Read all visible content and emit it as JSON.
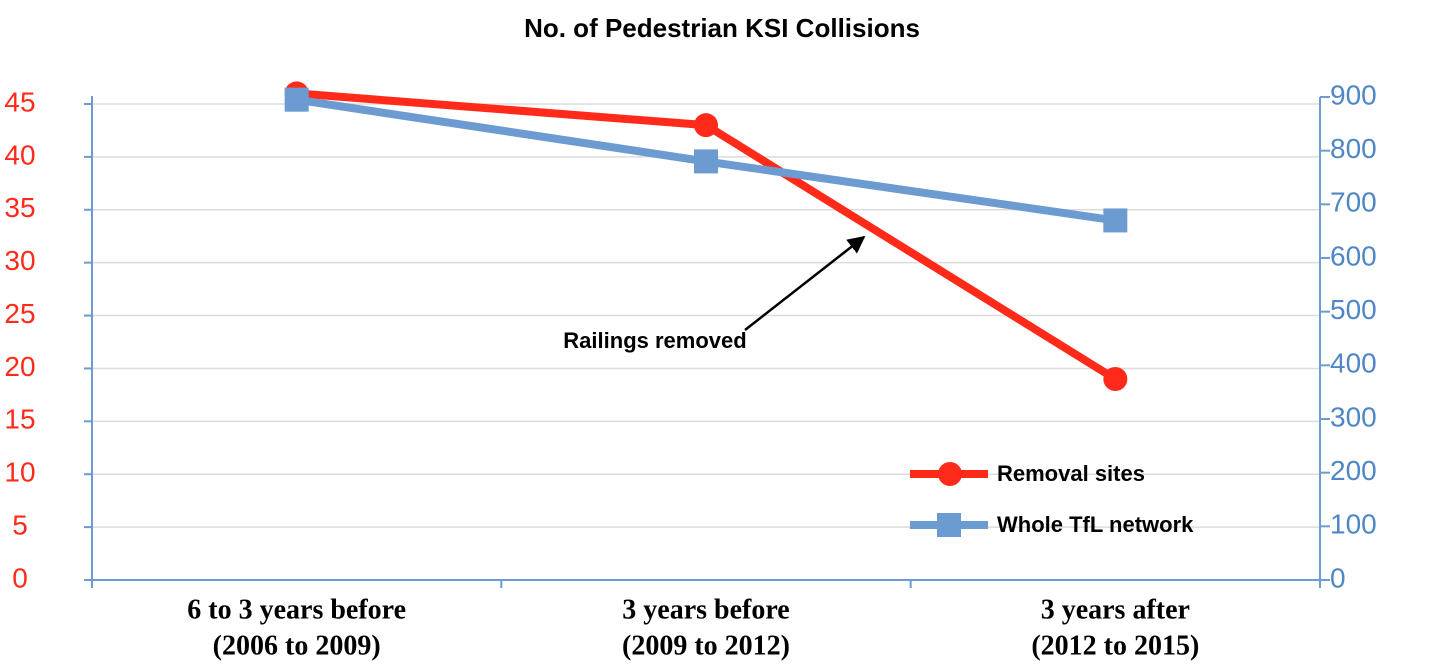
{
  "chart_data": {
    "type": "line",
    "title": "No. of Pedestrian KSI Collisions",
    "categories": [
      [
        "6 to 3 years before",
        "(2006 to 2009)"
      ],
      [
        "3 years before",
        "(2009 to 2012)"
      ],
      [
        "3 years after",
        "(2012 to 2015)"
      ]
    ],
    "series": [
      {
        "name": "Removal sites",
        "color": "#ff2a1a",
        "marker": "circle",
        "values": [
          46,
          43,
          19
        ]
      },
      {
        "name": "Whole TfL network",
        "color": "#6b9bd1",
        "marker": "square",
        "axis": "y2",
        "values": [
          895,
          780,
          670
        ]
      }
    ],
    "ylim": [
      0,
      45
    ],
    "yticks": [
      0,
      5,
      10,
      15,
      20,
      25,
      30,
      35,
      40,
      45
    ],
    "y2lim": [
      0,
      900
    ],
    "y2ticks": [
      0,
      100,
      200,
      300,
      400,
      500,
      600,
      700,
      800,
      900
    ],
    "grid": true,
    "annotations": [
      {
        "text": "Railings removed"
      }
    ],
    "legend": "lower right"
  }
}
